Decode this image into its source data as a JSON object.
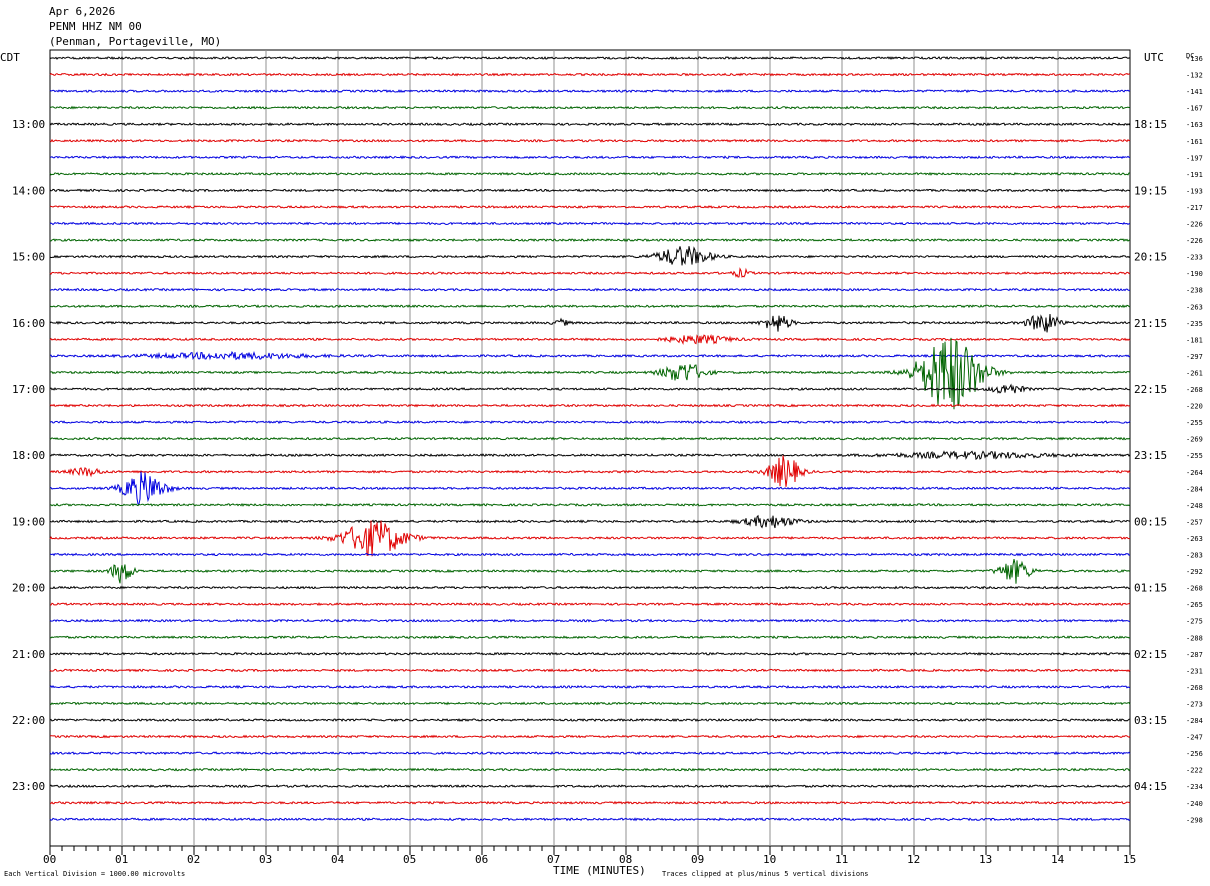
{
  "header": {
    "date": "Apr 6,2026",
    "station": "PENM HHZ NM 00",
    "location": "(Penman, Portageville, MO)"
  },
  "chart_data": {
    "type": "line",
    "subtype": "helicorder",
    "left_label": "CDT",
    "right_label": "UTC",
    "dc_label": "DC",
    "xlabel": "TIME (MINUTES)",
    "x_ticks": [
      "00",
      "01",
      "02",
      "03",
      "04",
      "05",
      "06",
      "07",
      "08",
      "09",
      "10",
      "11",
      "12",
      "13",
      "14",
      "15"
    ],
    "xlim": [
      0,
      15
    ],
    "trace_colors": [
      "#000000",
      "#e00000",
      "#0000e0",
      "#006400"
    ],
    "left_time_labels": [
      {
        "row": 4,
        "text": "13:00"
      },
      {
        "row": 8,
        "text": "14:00"
      },
      {
        "row": 12,
        "text": "15:00"
      },
      {
        "row": 16,
        "text": "16:00"
      },
      {
        "row": 20,
        "text": "17:00"
      },
      {
        "row": 24,
        "text": "18:00"
      },
      {
        "row": 28,
        "text": "19:00"
      },
      {
        "row": 32,
        "text": "20:00"
      },
      {
        "row": 36,
        "text": "21:00"
      },
      {
        "row": 40,
        "text": "22:00"
      },
      {
        "row": 44,
        "text": "23:00"
      }
    ],
    "right_time_labels": [
      {
        "row": 4,
        "text": "18:15"
      },
      {
        "row": 8,
        "text": "19:15"
      },
      {
        "row": 12,
        "text": "20:15"
      },
      {
        "row": 16,
        "text": "21:15"
      },
      {
        "row": 20,
        "text": "22:15"
      },
      {
        "row": 24,
        "text": "23:15"
      },
      {
        "row": 28,
        "text": "00:15"
      },
      {
        "row": 32,
        "text": "01:15"
      },
      {
        "row": 36,
        "text": "02:15"
      },
      {
        "row": 40,
        "text": "03:15"
      },
      {
        "row": 44,
        "text": "04:15"
      }
    ],
    "dc_offsets": [
      "-136",
      "-132",
      "-141",
      "-167",
      "-163",
      "-161",
      "-197",
      "-191",
      "-193",
      "-217",
      "-226",
      "-226",
      "-233",
      "-190",
      "-238",
      "-263",
      "-235",
      "-181",
      "-297",
      "-261",
      "-268",
      "-220",
      "-255",
      "-269",
      "-255",
      "-264",
      "-284",
      "-248",
      "-257",
      "-263",
      "-283",
      "-292",
      "-268",
      "-265",
      "-275",
      "-288",
      "-287",
      "-231",
      "-268",
      "-273",
      "-284",
      "-247",
      "-256",
      "-222",
      "-234",
      "-240",
      "-298"
    ],
    "events": [
      {
        "row": 12,
        "minute": 8.8,
        "amplitude": 10,
        "duration": 1.0
      },
      {
        "row": 13,
        "minute": 9.6,
        "amplitude": 4,
        "duration": 0.3
      },
      {
        "row": 16,
        "minute": 7.1,
        "amplitude": 3,
        "duration": 0.3
      },
      {
        "row": 16,
        "minute": 10.1,
        "amplitude": 9,
        "duration": 0.5
      },
      {
        "row": 16,
        "minute": 13.8,
        "amplitude": 10,
        "duration": 0.6
      },
      {
        "row": 17,
        "minute": 9.0,
        "amplitude": 4,
        "duration": 1.2
      },
      {
        "row": 18,
        "minute": 2.5,
        "amplitude": 3,
        "duration": 3.0
      },
      {
        "row": 19,
        "minute": 8.8,
        "amplitude": 10,
        "duration": 0.8
      },
      {
        "row": 19,
        "minute": 12.5,
        "amplitude": 40,
        "duration": 1.2
      },
      {
        "row": 20,
        "minute": 13.3,
        "amplitude": 5,
        "duration": 0.6
      },
      {
        "row": 24,
        "minute": 12.8,
        "amplitude": 3,
        "duration": 3.0
      },
      {
        "row": 25,
        "minute": 0.5,
        "amplitude": 4,
        "duration": 0.6
      },
      {
        "row": 25,
        "minute": 10.2,
        "amplitude": 16,
        "duration": 0.6
      },
      {
        "row": 26,
        "minute": 1.3,
        "amplitude": 16,
        "duration": 0.8
      },
      {
        "row": 28,
        "minute": 10.0,
        "amplitude": 6,
        "duration": 1.0
      },
      {
        "row": 29,
        "minute": 4.5,
        "amplitude": 18,
        "duration": 1.2
      },
      {
        "row": 31,
        "minute": 1.0,
        "amplitude": 12,
        "duration": 0.4
      },
      {
        "row": 31,
        "minute": 13.4,
        "amplitude": 12,
        "duration": 0.6
      }
    ],
    "footer_left": "Each Vertical Division = 1000.00 microvolts",
    "footer_right": "Traces clipped at plus/minus 5 vertical divisions",
    "grid": true
  }
}
